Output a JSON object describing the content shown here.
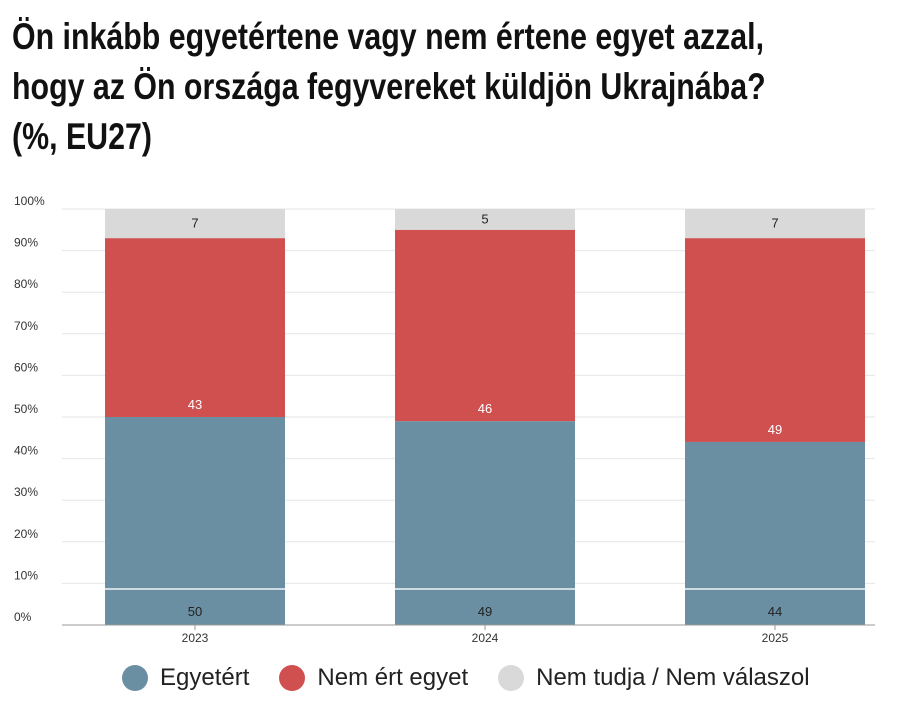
{
  "title_lines": [
    "Ön inkább egyetértene vagy nem értene egyet azzal,",
    "hogy az Ön országa fegyvereket küldjön Ukrajnába?",
    "(%, EU27)"
  ],
  "chart_data": {
    "type": "bar",
    "stacked": true,
    "categories": [
      "2023",
      "2024",
      "2025"
    ],
    "series": [
      {
        "name": "Egyetért",
        "values": [
          50,
          49,
          44
        ],
        "color": "#6a8fa3",
        "label_color": "#222222"
      },
      {
        "name": "Nem ért egyet",
        "values": [
          43,
          46,
          49
        ],
        "color": "#d05050",
        "label_color": "#ffffff"
      },
      {
        "name": "Nem tudja / Nem válaszol",
        "values": [
          7,
          5,
          7
        ],
        "color": "#d9d9d9",
        "label_color": "#222222"
      }
    ],
    "yticks": [
      "0%",
      "10%",
      "20%",
      "30%",
      "40%",
      "50%",
      "60%",
      "70%",
      "80%",
      "90%",
      "100%"
    ],
    "ylim": [
      0,
      100
    ],
    "grid": true,
    "legend_position": "bottom"
  }
}
